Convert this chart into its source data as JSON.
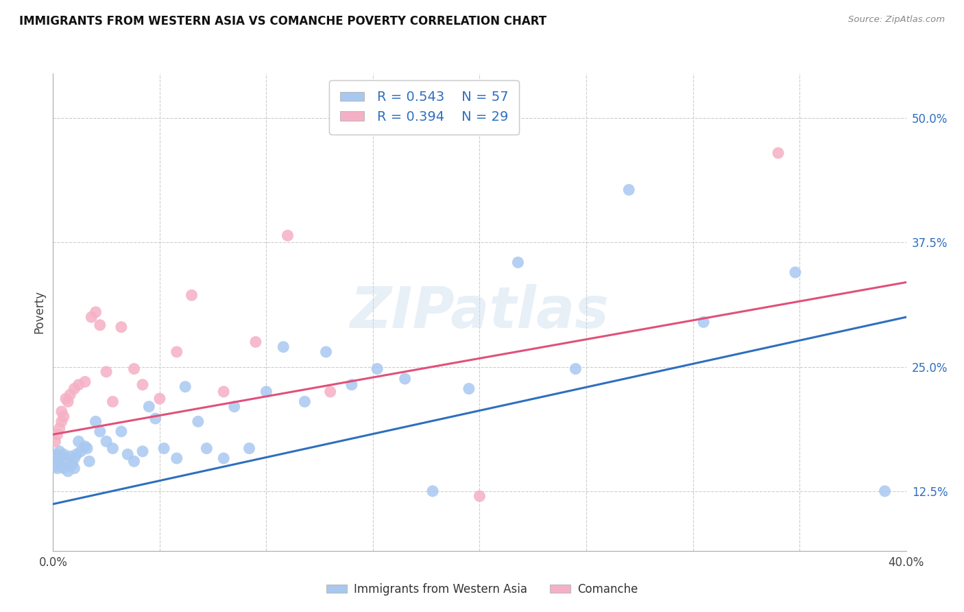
{
  "title": "IMMIGRANTS FROM WESTERN ASIA VS COMANCHE POVERTY CORRELATION CHART",
  "source": "Source: ZipAtlas.com",
  "ylabel": "Poverty",
  "ytick_labels": [
    "12.5%",
    "25.0%",
    "37.5%",
    "50.0%"
  ],
  "ytick_vals": [
    0.125,
    0.25,
    0.375,
    0.5
  ],
  "xlim": [
    0.0,
    0.4
  ],
  "ylim": [
    0.065,
    0.545
  ],
  "blue_R": "0.543",
  "blue_N": "57",
  "pink_R": "0.394",
  "pink_N": "29",
  "blue_dot_color": "#a8c8f0",
  "pink_dot_color": "#f5b0c5",
  "blue_line_color": "#2e6fbf",
  "pink_line_color": "#e0507a",
  "watermark": "ZIPatlas",
  "legend_label_blue": "Immigrants from Western Asia",
  "legend_label_pink": "Comanche",
  "blue_line_x0": 0.0,
  "blue_line_y0": 0.112,
  "blue_line_x1": 0.4,
  "blue_line_y1": 0.3,
  "pink_line_x0": 0.0,
  "pink_line_y0": 0.182,
  "pink_line_x1": 0.4,
  "pink_line_y1": 0.335,
  "blue_x": [
    0.001,
    0.001,
    0.001,
    0.002,
    0.002,
    0.002,
    0.003,
    0.003,
    0.004,
    0.004,
    0.005,
    0.005,
    0.006,
    0.007,
    0.008,
    0.009,
    0.01,
    0.01,
    0.011,
    0.012,
    0.013,
    0.015,
    0.016,
    0.017,
    0.02,
    0.022,
    0.025,
    0.028,
    0.032,
    0.035,
    0.038,
    0.042,
    0.045,
    0.048,
    0.052,
    0.058,
    0.062,
    0.068,
    0.072,
    0.08,
    0.085,
    0.092,
    0.1,
    0.108,
    0.118,
    0.128,
    0.14,
    0.152,
    0.165,
    0.178,
    0.195,
    0.218,
    0.245,
    0.27,
    0.305,
    0.348,
    0.39
  ],
  "blue_y": [
    0.155,
    0.16,
    0.15,
    0.148,
    0.162,
    0.155,
    0.158,
    0.165,
    0.15,
    0.16,
    0.148,
    0.162,
    0.155,
    0.145,
    0.16,
    0.152,
    0.158,
    0.148,
    0.162,
    0.175,
    0.165,
    0.17,
    0.168,
    0.155,
    0.195,
    0.185,
    0.175,
    0.168,
    0.185,
    0.162,
    0.155,
    0.165,
    0.21,
    0.198,
    0.168,
    0.158,
    0.23,
    0.195,
    0.168,
    0.158,
    0.21,
    0.168,
    0.225,
    0.27,
    0.215,
    0.265,
    0.232,
    0.248,
    0.238,
    0.125,
    0.228,
    0.355,
    0.248,
    0.428,
    0.295,
    0.345,
    0.125
  ],
  "pink_x": [
    0.001,
    0.002,
    0.003,
    0.004,
    0.004,
    0.005,
    0.006,
    0.007,
    0.008,
    0.01,
    0.012,
    0.015,
    0.018,
    0.02,
    0.022,
    0.025,
    0.028,
    0.032,
    0.038,
    0.042,
    0.05,
    0.058,
    0.065,
    0.08,
    0.095,
    0.11,
    0.13,
    0.2,
    0.34
  ],
  "pink_y": [
    0.175,
    0.182,
    0.188,
    0.195,
    0.205,
    0.2,
    0.218,
    0.215,
    0.222,
    0.228,
    0.232,
    0.235,
    0.3,
    0.305,
    0.292,
    0.245,
    0.215,
    0.29,
    0.248,
    0.232,
    0.218,
    0.265,
    0.322,
    0.225,
    0.275,
    0.382,
    0.225,
    0.12,
    0.465
  ]
}
